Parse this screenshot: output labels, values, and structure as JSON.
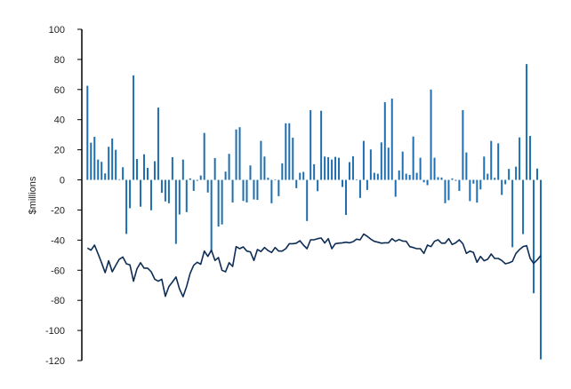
{
  "chart_data": {
    "type": "bar+line",
    "title": "",
    "xlabel": "",
    "ylabel": "$millions",
    "ylim": [
      -120,
      100
    ],
    "yticks": [
      100,
      80,
      60,
      40,
      20,
      0,
      -20,
      -40,
      -60,
      -80,
      -100,
      -120
    ],
    "grid": false,
    "legend": "none",
    "colors": {
      "bars": "#1f6fb0",
      "line": "#0e2d55",
      "axis": "#000000"
    },
    "series": [
      {
        "type": "bar",
        "values": [
          62.5,
          24.7,
          28.6,
          13.5,
          12,
          4.3,
          22,
          27.5,
          20,
          0.4,
          8.4,
          -35.9,
          -18.8,
          69.4,
          13.9,
          -17.8,
          17,
          8,
          -20.2,
          12.4,
          48,
          -8.6,
          -14.3,
          -15.5,
          15.1,
          -42.5,
          -23,
          13.5,
          -21.4,
          1,
          -7.3,
          -0.6,
          2.9,
          31.2,
          -8.4,
          -47,
          14.5,
          -31,
          -29.6,
          5.5,
          17.3,
          -15,
          33.5,
          35,
          -14,
          -15,
          9.6,
          -13,
          -13.3,
          25.9,
          15.5,
          1.4,
          -15.5,
          0.4,
          -10.8,
          11,
          37.6,
          37.6,
          28,
          -5.5,
          4.7,
          5.3,
          -27.3,
          46.3,
          10.4,
          -7.5,
          45.9,
          15.5,
          15.1,
          13.5,
          15.3,
          14.7,
          -4.7,
          -23.3,
          11.8,
          15.7,
          0.2,
          -12,
          25.9,
          -6.7,
          20.2,
          4.7,
          4.1,
          24.9,
          51.6,
          21.4,
          54,
          -11.2,
          6.3,
          18.8,
          4.1,
          3.3,
          28.8,
          4.7,
          14.7,
          -1.6,
          -3.5,
          60,
          14.7,
          1.8,
          1.6,
          -15.5,
          -13.5,
          1,
          -0.6,
          -7.3,
          46.3,
          18.2,
          -14.1,
          -2.5,
          -15.1,
          -6.3,
          15.5,
          4.1,
          25.9,
          1.4,
          24.3,
          -10,
          -2.9,
          7.3,
          -44.7,
          8.8,
          28.2,
          -36,
          76.9,
          29.2,
          -75.3,
          7.5,
          -119.2
        ]
      },
      {
        "type": "line",
        "values": [
          -45.3,
          -46.7,
          -43.3,
          -49,
          -55,
          -61.6,
          -53.7,
          -61,
          -56.7,
          -52.7,
          -51.2,
          -55.7,
          -56.5,
          -67.3,
          -59,
          -55,
          -58.6,
          -58.6,
          -61,
          -66,
          -67.3,
          -66,
          -77.3,
          -70.8,
          -67.8,
          -64.5,
          -72.4,
          -77.6,
          -70.8,
          -62,
          -56.7,
          -54.7,
          -56,
          -47.3,
          -50.8,
          -46.7,
          -53.5,
          -51.6,
          -60,
          -61,
          -55,
          -57.5,
          -44.3,
          -45.7,
          -44.5,
          -47.3,
          -47.8,
          -53.5,
          -46.3,
          -47.6,
          -44.9,
          -46.9,
          -48.2,
          -44.9,
          -47.3,
          -47.3,
          -45.7,
          -42.4,
          -42.4,
          -42,
          -40.4,
          -43.3,
          -45.7,
          -39.8,
          -39.8,
          -39,
          -38.6,
          -41.9,
          -39,
          -45.7,
          -42.4,
          -42,
          -41.8,
          -41.4,
          -41.8,
          -41,
          -39.4,
          -39.8,
          -36,
          -37.5,
          -39.4,
          -40.8,
          -41.4,
          -42,
          -41.8,
          -41.8,
          -39,
          -40.8,
          -39.6,
          -40.6,
          -40.8,
          -44.3,
          -44.9,
          -45.7,
          -45.7,
          -48.8,
          -43.3,
          -44.3,
          -40.8,
          -39.8,
          -42,
          -42,
          -39,
          -42.9,
          -41.8,
          -39.8,
          -42.4,
          -48.8,
          -47.3,
          -48.2,
          -54.7,
          -50.8,
          -53.7,
          -52.7,
          -49.2,
          -52.2,
          -52.2,
          -53.5,
          -55.7,
          -55.1,
          -54.1,
          -48.8,
          -46.3,
          -44.3,
          -43.7,
          -52.2,
          -55.5,
          -53.1,
          -50.2
        ]
      }
    ]
  }
}
